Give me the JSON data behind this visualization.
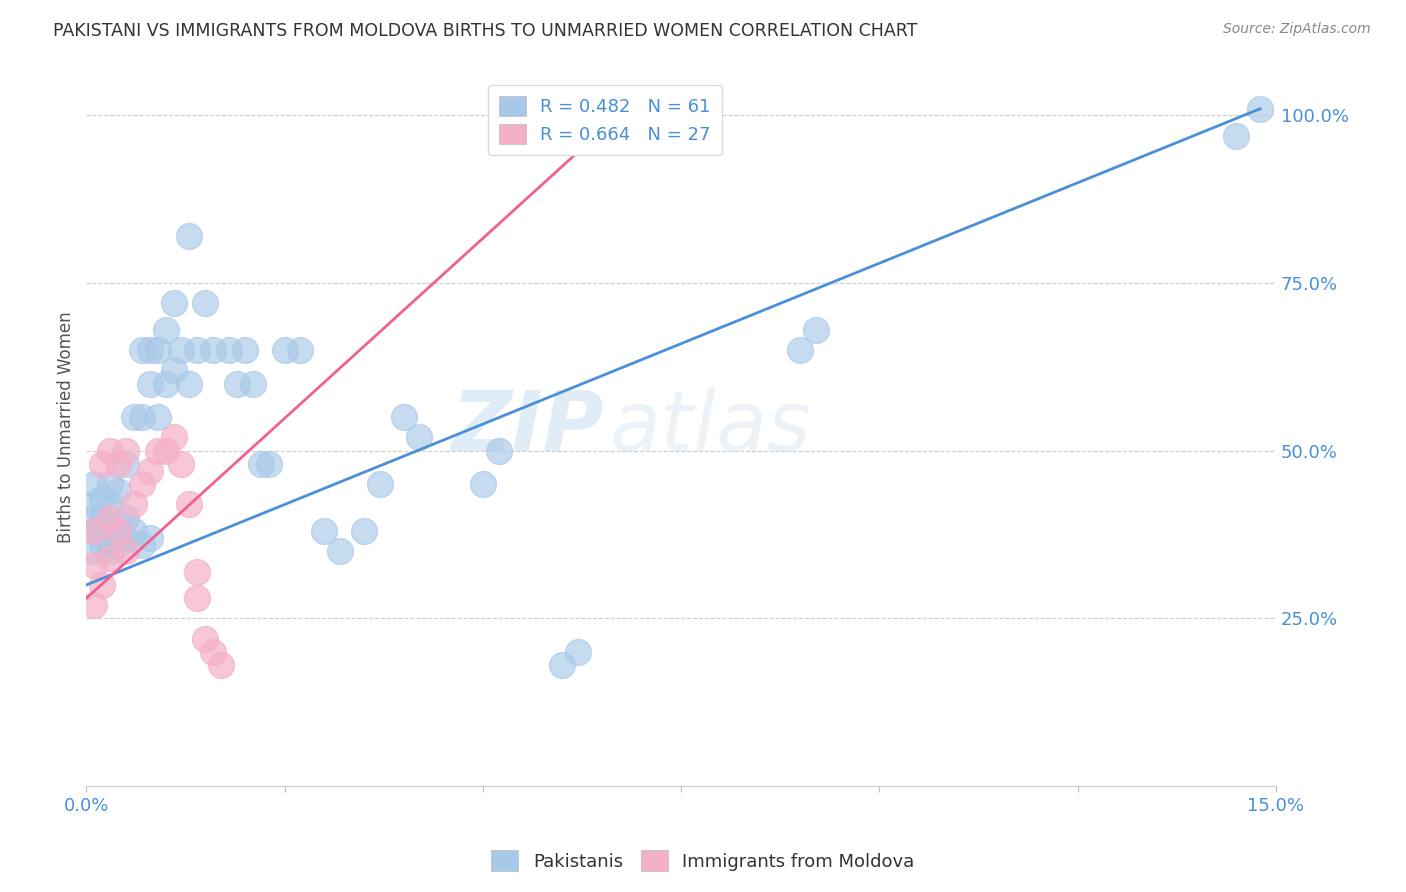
{
  "title": "PAKISTANI VS IMMIGRANTS FROM MOLDOVA BIRTHS TO UNMARRIED WOMEN CORRELATION CHART",
  "source": "Source: ZipAtlas.com",
  "ylabel": "Births to Unmarried Women",
  "xlim": [
    0.0,
    0.15
  ],
  "ylim": [
    0.0,
    1.07
  ],
  "x_tick_positions": [
    0.0,
    0.025,
    0.05,
    0.075,
    0.1,
    0.125,
    0.15
  ],
  "x_tick_labels": [
    "0.0%",
    "",
    "",
    "",
    "",
    "",
    "15.0%"
  ],
  "y_tick_positions": [
    0.25,
    0.5,
    0.75,
    1.0
  ],
  "y_tick_labels": [
    "25.0%",
    "50.0%",
    "75.0%",
    "100.0%"
  ],
  "pakistani_color": "#a8c8e8",
  "moldova_color": "#f4b0c8",
  "line_pakistani_color": "#4a90d9",
  "line_moldova_color": "#f06090",
  "pakistani_R": 0.482,
  "pakistan_N": 61,
  "moldova_R": 0.664,
  "moldova_N": 27,
  "pak_line_x": [
    0.0,
    0.148
  ],
  "pak_line_y": [
    0.3,
    1.01
  ],
  "mol_line_x": [
    0.0,
    0.068
  ],
  "mol_line_y": [
    0.28,
    1.01
  ],
  "pakistani_x": [
    0.001,
    0.001,
    0.001,
    0.001,
    0.001,
    0.002,
    0.002,
    0.002,
    0.002,
    0.003,
    0.003,
    0.003,
    0.003,
    0.004,
    0.004,
    0.004,
    0.005,
    0.005,
    0.005,
    0.006,
    0.006,
    0.007,
    0.007,
    0.007,
    0.008,
    0.008,
    0.008,
    0.009,
    0.009,
    0.01,
    0.01,
    0.011,
    0.011,
    0.012,
    0.013,
    0.013,
    0.014,
    0.015,
    0.016,
    0.018,
    0.019,
    0.02,
    0.021,
    0.022,
    0.023,
    0.025,
    0.027,
    0.03,
    0.032,
    0.035,
    0.037,
    0.04,
    0.042,
    0.05,
    0.052,
    0.06,
    0.062,
    0.09,
    0.092,
    0.145,
    0.148
  ],
  "pakistani_y": [
    0.35,
    0.38,
    0.4,
    0.42,
    0.45,
    0.36,
    0.38,
    0.4,
    0.43,
    0.35,
    0.37,
    0.42,
    0.45,
    0.36,
    0.39,
    0.44,
    0.37,
    0.4,
    0.48,
    0.38,
    0.55,
    0.36,
    0.55,
    0.65,
    0.37,
    0.6,
    0.65,
    0.55,
    0.65,
    0.6,
    0.68,
    0.62,
    0.72,
    0.65,
    0.6,
    0.82,
    0.65,
    0.72,
    0.65,
    0.65,
    0.6,
    0.65,
    0.6,
    0.48,
    0.48,
    0.65,
    0.65,
    0.38,
    0.35,
    0.38,
    0.45,
    0.55,
    0.52,
    0.45,
    0.5,
    0.18,
    0.2,
    0.65,
    0.68,
    0.97,
    1.01
  ],
  "moldova_x": [
    0.001,
    0.001,
    0.001,
    0.002,
    0.002,
    0.003,
    0.003,
    0.003,
    0.004,
    0.004,
    0.005,
    0.005,
    0.006,
    0.007,
    0.008,
    0.009,
    0.01,
    0.011,
    0.012,
    0.013,
    0.014,
    0.014,
    0.015,
    0.016,
    0.017,
    0.065,
    0.068
  ],
  "moldova_y": [
    0.27,
    0.33,
    0.38,
    0.3,
    0.48,
    0.34,
    0.4,
    0.5,
    0.38,
    0.48,
    0.35,
    0.5,
    0.42,
    0.45,
    0.47,
    0.5,
    0.5,
    0.52,
    0.48,
    0.42,
    0.28,
    0.32,
    0.22,
    0.2,
    0.18,
    1.01,
    0.97
  ]
}
